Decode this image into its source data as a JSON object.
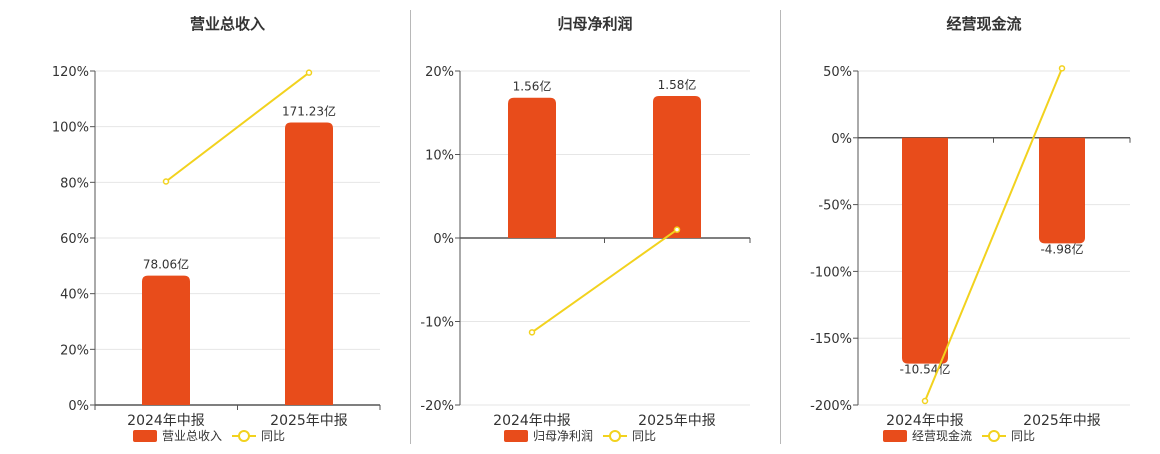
{
  "chart_data": [
    {
      "type": "bar",
      "title": "营业总收入",
      "categories": [
        "2024年中报",
        "2025年中报"
      ],
      "series": [
        {
          "name": "营业总收入",
          "type": "bar",
          "values": [
            46.5,
            101.5
          ],
          "labels": [
            "78.06亿",
            "171.23亿"
          ],
          "color": "#e84c1b"
        },
        {
          "name": "同比",
          "type": "line",
          "values": [
            80.3,
            119.4
          ],
          "color": "#f2d21e"
        }
      ],
      "yaxis": {
        "min": 0,
        "max": 120,
        "step": 20,
        "unit": "%"
      }
    },
    {
      "type": "bar",
      "title": "归母净利润",
      "categories": [
        "2024年中报",
        "2025年中报"
      ],
      "series": [
        {
          "name": "归母净利润",
          "type": "bar",
          "values": [
            16.8,
            17.0
          ],
          "labels": [
            "1.56亿",
            "1.58亿"
          ],
          "color": "#e84c1b"
        },
        {
          "name": "同比",
          "type": "line",
          "values": [
            -11.3,
            1.0
          ],
          "color": "#f2d21e"
        }
      ],
      "yaxis": {
        "min": -20,
        "max": 20,
        "step": 10,
        "unit": "%"
      }
    },
    {
      "type": "bar",
      "title": "经营现金流",
      "categories": [
        "2024年中报",
        "2025年中报"
      ],
      "series": [
        {
          "name": "经营现金流",
          "type": "bar",
          "values": [
            -169,
            -79
          ],
          "labels": [
            "-10.54亿",
            "-4.98亿"
          ],
          "color": "#e84c1b"
        },
        {
          "name": "同比",
          "type": "line",
          "values": [
            -197,
            52
          ],
          "color": "#f2d21e"
        }
      ],
      "yaxis": {
        "min": -200,
        "max": 50,
        "step": 50,
        "unit": "%"
      }
    }
  ]
}
